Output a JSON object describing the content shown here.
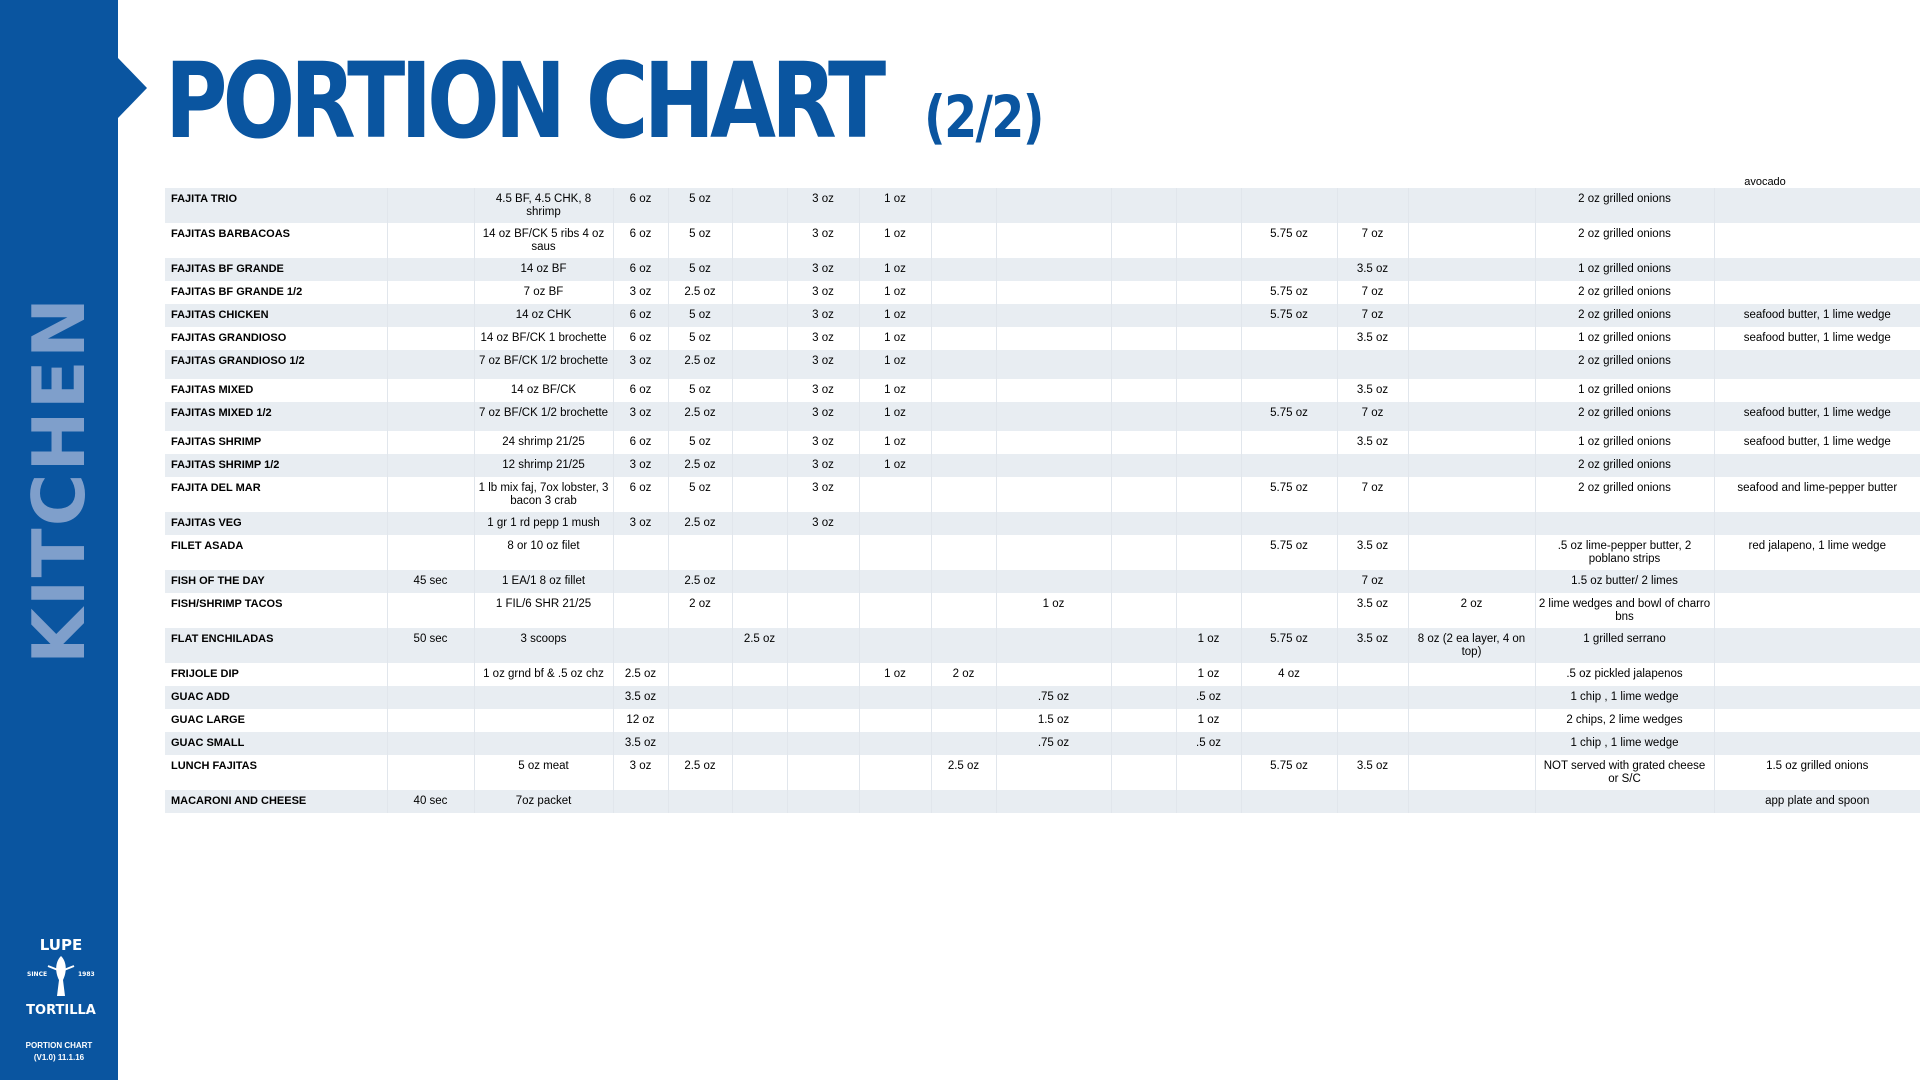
{
  "sidebar": {
    "label": "KITCHEN",
    "logo_top": "LUPE",
    "logo_bottom": "TORTILLA",
    "logo_since": "SINCE",
    "logo_year": "1983",
    "footer_line1": "PORTION CHART",
    "footer_line2": "(V1.0) 11.1.16"
  },
  "header": {
    "title": "PORTION CHART",
    "subtitle": "(2/2)"
  },
  "table": {
    "partial_top_text": "avocado",
    "rows": [
      {
        "cells": [
          "FAJITA TRIO",
          "",
          "4.5 BF, 4.5 CHK, 8 shrimp",
          "6 oz",
          "5 oz",
          "",
          "3 oz",
          "1 oz",
          "",
          "",
          "",
          "",
          "",
          "",
          "",
          "2 oz grilled onions",
          ""
        ]
      },
      {
        "cells": [
          "FAJITAS BARBACOAS",
          "",
          "14 oz BF/CK 5 ribs 4 oz saus",
          "6 oz",
          "5 oz",
          "",
          "3 oz",
          "1 oz",
          "",
          "",
          "",
          "",
          "5.75 oz",
          "7 oz",
          "",
          "2 oz grilled onions",
          ""
        ]
      },
      {
        "cells": [
          "FAJITAS BF GRANDE",
          "",
          "14 oz BF",
          "6 oz",
          "5 oz",
          "",
          "3 oz",
          "1 oz",
          "",
          "",
          "",
          "",
          "",
          "3.5 oz",
          "",
          "1 oz grilled onions",
          ""
        ]
      },
      {
        "cells": [
          "FAJITAS BF GRANDE 1/2",
          "",
          "7 oz BF",
          "3 oz",
          "2.5 oz",
          "",
          "3 oz",
          "1 oz",
          "",
          "",
          "",
          "",
          "5.75 oz",
          "7 oz",
          "",
          "2 oz grilled onions",
          ""
        ]
      },
      {
        "cells": [
          "FAJITAS CHICKEN",
          "",
          "14 oz CHK",
          "6 oz",
          "5 oz",
          "",
          "3 oz",
          "1 oz",
          "",
          "",
          "",
          "",
          "5.75 oz",
          "7 oz",
          "",
          "2 oz grilled onions",
          "seafood butter, 1 lime wedge"
        ]
      },
      {
        "cells": [
          "FAJITAS GRANDIOSO",
          "",
          "14 oz BF/CK 1 brochette",
          "6 oz",
          "5 oz",
          "",
          "3 oz",
          "1 oz",
          "",
          "",
          "",
          "",
          "",
          "3.5 oz",
          "",
          "1 oz grilled onions",
          "seafood butter, 1 lime wedge"
        ]
      },
      {
        "cells": [
          "FAJITAS GRANDIOSO 1/2",
          "",
          "7 oz BF/CK 1/2 brochette",
          "3 oz",
          "2.5 oz",
          "",
          "3 oz",
          "1 oz",
          "",
          "",
          "",
          "",
          "",
          "",
          "",
          "2 oz grilled onions",
          ""
        ]
      },
      {
        "cells": [
          "FAJITAS MIXED",
          "",
          "14 oz BF/CK",
          "6 oz",
          "5 oz",
          "",
          "3 oz",
          "1 oz",
          "",
          "",
          "",
          "",
          "",
          "3.5 oz",
          "",
          "1 oz grilled onions",
          ""
        ]
      },
      {
        "cells": [
          "FAJITAS MIXED 1/2",
          "",
          "7 oz BF/CK 1/2 brochette",
          "3 oz",
          "2.5 oz",
          "",
          "3 oz",
          "1 oz",
          "",
          "",
          "",
          "",
          "5.75 oz",
          "7 oz",
          "",
          "2 oz grilled onions",
          "seafood butter, 1 lime wedge"
        ]
      },
      {
        "cells": [
          "FAJITAS SHRIMP",
          "",
          "24 shrimp 21/25",
          "6 oz",
          "5 oz",
          "",
          "3 oz",
          "1 oz",
          "",
          "",
          "",
          "",
          "",
          "3.5 oz",
          "",
          "1 oz grilled onions",
          "seafood butter, 1 lime wedge"
        ]
      },
      {
        "cells": [
          "FAJITAS SHRIMP 1/2",
          "",
          "12 shrimp 21/25",
          "3 oz",
          "2.5 oz",
          "",
          "3 oz",
          "1 oz",
          "",
          "",
          "",
          "",
          "",
          "",
          "",
          "2 oz grilled onions",
          ""
        ]
      },
      {
        "cells": [
          "FAJITA DEL MAR",
          "",
          "1 lb mix faj, 7ox lobster, 3 bacon 3 crab",
          "6 oz",
          "5 oz",
          "",
          "3 oz",
          "",
          "",
          "",
          "",
          "",
          "5.75 oz",
          "7 oz",
          "",
          "2 oz grilled onions",
          "seafood and lime-pepper butter"
        ]
      },
      {
        "cells": [
          "FAJITAS VEG",
          "",
          "1 gr 1 rd pepp 1 mush",
          "3 oz",
          "2.5 oz",
          "",
          "3 oz",
          "",
          "",
          "",
          "",
          "",
          "",
          "",
          "",
          "",
          ""
        ]
      },
      {
        "cells": [
          "FILET ASADA",
          "",
          "8 or 10 oz filet",
          "",
          "",
          "",
          "",
          "",
          "",
          "",
          "",
          "",
          "5.75 oz",
          "3.5 oz",
          "",
          ".5 oz lime-pepper butter, 2 poblano strips",
          "red jalapeno, 1 lime wedge"
        ]
      },
      {
        "cells": [
          "FISH OF THE DAY",
          "45 sec",
          "1 EA/1 8 oz fillet",
          "",
          "2.5 oz",
          "",
          "",
          "",
          "",
          "",
          "",
          "",
          "",
          "7 oz",
          "",
          "1.5 oz butter/ 2 limes",
          ""
        ]
      },
      {
        "cells": [
          "FISH/SHRIMP TACOS",
          "",
          "1 FIL/6 SHR 21/25",
          "",
          "2 oz",
          "",
          "",
          "",
          "",
          "1 oz",
          "",
          "",
          "",
          "3.5 oz",
          "2 oz",
          "2 lime wedges and bowl of charro bns",
          ""
        ]
      },
      {
        "cells": [
          "FLAT ENCHILADAS",
          "50 sec",
          "3 scoops",
          "",
          "",
          "2.5 oz",
          "",
          "",
          "",
          "",
          "",
          "1 oz",
          "5.75 oz",
          "3.5 oz",
          "8 oz (2 ea layer, 4 on top)",
          "1 grilled serrano",
          ""
        ]
      },
      {
        "cells": [
          "FRIJOLE DIP",
          "",
          "1 oz grnd bf & .5 oz chz",
          "2.5 oz",
          "",
          "",
          "",
          "1 oz",
          "2 oz",
          "",
          "",
          "1 oz",
          "4 oz",
          "",
          "",
          ".5 oz pickled jalapenos",
          ""
        ]
      },
      {
        "cells": [
          "GUAC ADD",
          "",
          "",
          "3.5 oz",
          "",
          "",
          "",
          "",
          "",
          ".75 oz",
          "",
          ".5 oz",
          "",
          "",
          "",
          "1 chip , 1 lime wedge",
          ""
        ]
      },
      {
        "cells": [
          "GUAC LARGE",
          "",
          "",
          "12 oz",
          "",
          "",
          "",
          "",
          "",
          "1.5 oz",
          "",
          "1 oz",
          "",
          "",
          "",
          "2 chips, 2 lime wedges",
          ""
        ]
      },
      {
        "cells": [
          "GUAC SMALL",
          "",
          "",
          "3.5 oz",
          "",
          "",
          "",
          "",
          "",
          ".75 oz",
          "",
          ".5 oz",
          "",
          "",
          "",
          "1 chip , 1 lime wedge",
          ""
        ]
      },
      {
        "cells": [
          "LUNCH FAJITAS",
          "",
          "5 oz meat",
          "3 oz",
          "2.5 oz",
          "",
          "",
          "",
          "2.5 oz",
          "",
          "",
          "",
          "5.75 oz",
          "3.5 oz",
          "",
          "NOT served with grated cheese or S/C",
          "1.5 oz grilled onions"
        ]
      },
      {
        "cells": [
          "MACARONI AND CHEESE",
          "40 sec",
          "7oz packet",
          "",
          "",
          "",
          "",
          "",
          "",
          "",
          "",
          "",
          "",
          "",
          "",
          "",
          "app plate and spoon"
        ]
      }
    ]
  }
}
